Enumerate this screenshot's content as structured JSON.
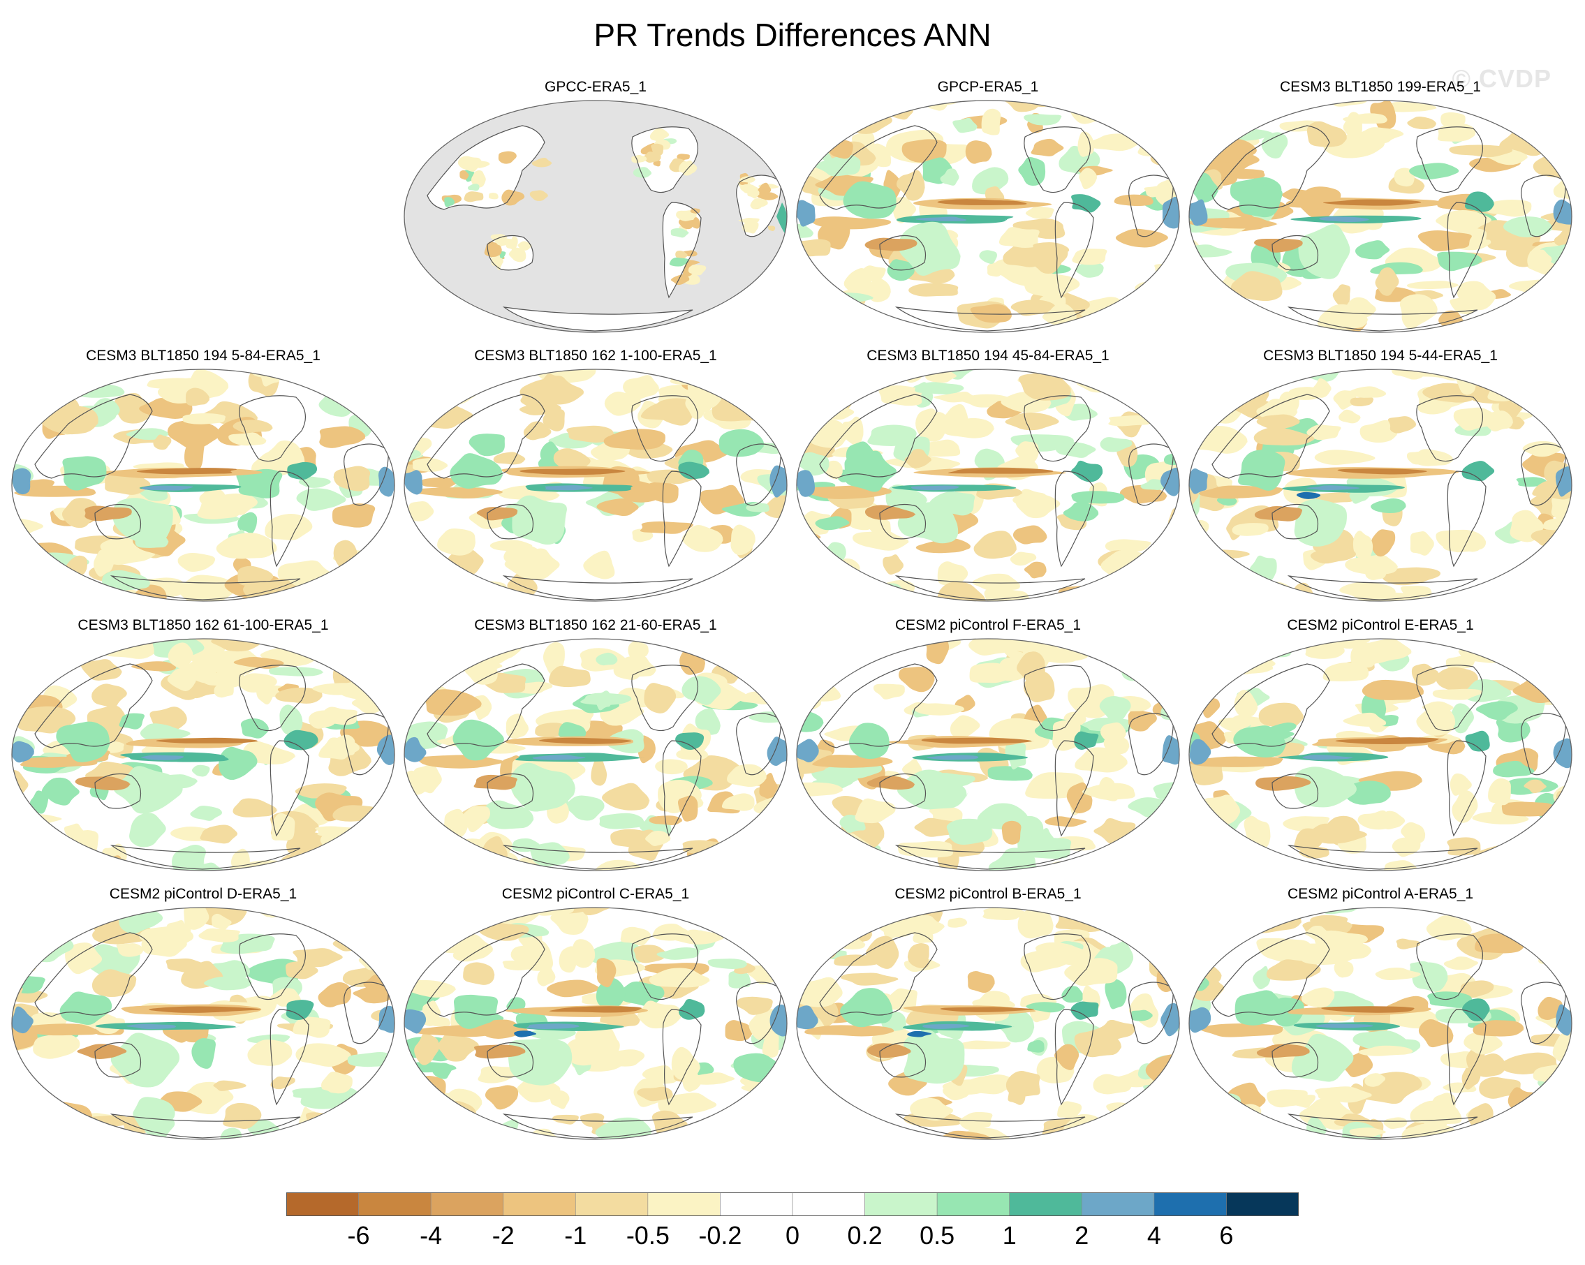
{
  "title": "PR Trends Differences ANN",
  "watermark": "© CVDP",
  "panels": [
    {
      "label": "GPCC-ERA5_1",
      "land_only": true
    },
    {
      "label": "GPCP-ERA5_1",
      "land_only": false
    },
    {
      "label": "CESM3 BLT1850 199-ERA5_1",
      "land_only": false
    },
    {
      "label": "CESM3 BLT1850 194 5-84-ERA5_1",
      "land_only": false
    },
    {
      "label": "CESM3 BLT1850 162 1-100-ERA5_1",
      "land_only": false
    },
    {
      "label": "CESM3 BLT1850 194 45-84-ERA5_1",
      "land_only": false
    },
    {
      "label": "CESM3 BLT1850 194 5-44-ERA5_1",
      "land_only": false
    },
    {
      "label": "CESM3 BLT1850 162 61-100-ERA5_1",
      "land_only": false
    },
    {
      "label": "CESM3 BLT1850 162 21-60-ERA5_1",
      "land_only": false
    },
    {
      "label": "CESM2 piControl F-ERA5_1",
      "land_only": false
    },
    {
      "label": "CESM2 piControl E-ERA5_1",
      "land_only": false
    },
    {
      "label": "CESM2 piControl D-ERA5_1",
      "land_only": false
    },
    {
      "label": "CESM2 piControl C-ERA5_1",
      "land_only": false
    },
    {
      "label": "CESM2 piControl B-ERA5_1",
      "land_only": false
    },
    {
      "label": "CESM2 piControl A-ERA5_1",
      "land_only": false
    }
  ],
  "colorbar": {
    "colors": [
      "#b5692b",
      "#c9863f",
      "#dba35f",
      "#edc47f",
      "#f3dca0",
      "#fbf3c4",
      "#ffffff",
      "#ffffff",
      "#c9f5cb",
      "#97e6b2",
      "#4fb99a",
      "#6da7c8",
      "#1e6fae",
      "#06375a"
    ],
    "labels": [
      "-6",
      "-4",
      "-2",
      "-1",
      "-0.5",
      "-0.2",
      "0",
      "0.2",
      "0.5",
      "1",
      "2",
      "4",
      "6"
    ]
  },
  "colors": {
    "land_mask": "#e3e3e3",
    "coastline": "#555555",
    "outline": "#666666"
  }
}
